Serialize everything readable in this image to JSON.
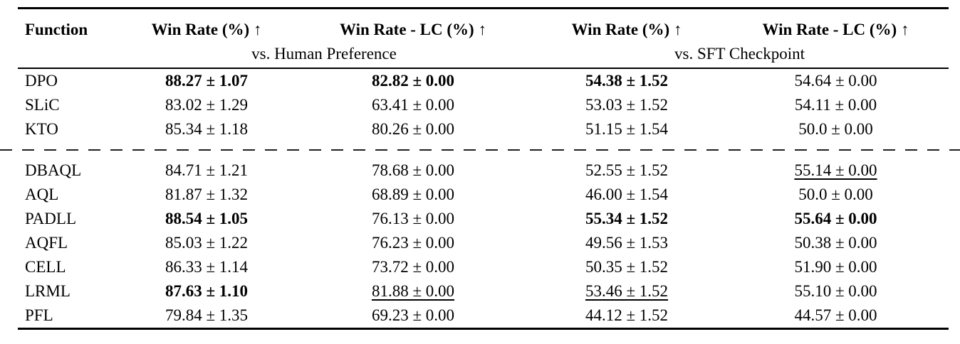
{
  "table": {
    "columns": [
      "Function",
      "Win Rate (%) ↑",
      "Win Rate - LC (%) ↑",
      "Win Rate (%) ↑",
      "Win Rate - LC (%) ↑"
    ],
    "subtitles": [
      "vs. Human Preference",
      "vs. SFT Checkpoint"
    ],
    "rows": [
      {
        "function": "DPO",
        "cells": [
          {
            "text": "88.27 ± 1.07",
            "bold": true
          },
          {
            "text": "82.82 ± 0.00",
            "bold": true
          },
          {
            "text": "54.38 ± 1.52",
            "bold": true
          },
          {
            "text": "54.64 ± 0.00"
          }
        ]
      },
      {
        "function": "SLiC",
        "cells": [
          {
            "text": "83.02 ± 1.29"
          },
          {
            "text": "63.41 ± 0.00"
          },
          {
            "text": "53.03 ± 1.52"
          },
          {
            "text": "54.11 ± 0.00"
          }
        ]
      },
      {
        "function": "KTO",
        "cells": [
          {
            "text": "85.34 ± 1.18"
          },
          {
            "text": "80.26 ± 0.00"
          },
          {
            "text": "51.15 ± 1.54"
          },
          {
            "text": "50.0 ± 0.00"
          }
        ],
        "group_end": true
      },
      {
        "function": "DBAQL",
        "cells": [
          {
            "text": "84.71 ± 1.21"
          },
          {
            "text": "78.68 ± 0.00"
          },
          {
            "text": "52.55 ± 1.52"
          },
          {
            "text": "55.14 ± 0.00",
            "underline": true
          }
        ],
        "group_start": true
      },
      {
        "function": "AQL",
        "cells": [
          {
            "text": "81.87 ± 1.32"
          },
          {
            "text": "68.89 ± 0.00"
          },
          {
            "text": "46.00 ± 1.54"
          },
          {
            "text": "50.0 ± 0.00"
          }
        ]
      },
      {
        "function": "PADLL",
        "cells": [
          {
            "text": "88.54 ± 1.05",
            "bold": true
          },
          {
            "text": "76.13 ± 0.00"
          },
          {
            "text": "55.34 ± 1.52",
            "bold": true
          },
          {
            "text": "55.64 ± 0.00",
            "bold": true
          }
        ]
      },
      {
        "function": "AQFL",
        "cells": [
          {
            "text": "85.03 ± 1.22"
          },
          {
            "text": "76.23 ± 0.00"
          },
          {
            "text": "49.56 ± 1.53"
          },
          {
            "text": "50.38 ± 0.00"
          }
        ]
      },
      {
        "function": "CELL",
        "cells": [
          {
            "text": "86.33 ± 1.14"
          },
          {
            "text": "73.72 ± 0.00"
          },
          {
            "text": "50.35 ± 1.52"
          },
          {
            "text": "51.90 ± 0.00"
          }
        ]
      },
      {
        "function": "LRML",
        "cells": [
          {
            "text": "87.63 ± 1.10",
            "bold": true
          },
          {
            "text": "81.88 ± 0.00",
            "underline": true
          },
          {
            "text": "53.46 ± 1.52",
            "underline": true
          },
          {
            "text": "55.10 ± 0.00"
          }
        ]
      },
      {
        "function": "PFL",
        "cells": [
          {
            "text": "79.84 ± 1.35"
          },
          {
            "text": "69.23 ± 0.00"
          },
          {
            "text": "44.12 ± 1.52"
          },
          {
            "text": "44.57 ± 0.00"
          }
        ]
      }
    ]
  },
  "chart_data": {
    "type": "table",
    "title": "",
    "columns": [
      "Function",
      "Win Rate (%) vs. Human Preference",
      "Win Rate - LC (%) vs. Human Preference",
      "Win Rate (%) vs. SFT Checkpoint",
      "Win Rate - LC (%) vs. SFT Checkpoint"
    ],
    "rows": [
      [
        "DPO",
        "88.27 ± 1.07",
        "82.82 ± 0.00",
        "54.38 ± 1.52",
        "54.64 ± 0.00"
      ],
      [
        "SLiC",
        "83.02 ± 1.29",
        "63.41 ± 0.00",
        "53.03 ± 1.52",
        "54.11 ± 0.00"
      ],
      [
        "KTO",
        "85.34 ± 1.18",
        "80.26 ± 0.00",
        "51.15 ± 1.54",
        "50.0 ± 0.00"
      ],
      [
        "DBAQL",
        "84.71 ± 1.21",
        "78.68 ± 0.00",
        "52.55 ± 1.52",
        "55.14 ± 0.00"
      ],
      [
        "AQL",
        "81.87 ± 1.32",
        "68.89 ± 0.00",
        "46.00 ± 1.54",
        "50.0 ± 0.00"
      ],
      [
        "PADLL",
        "88.54 ± 1.05",
        "76.13 ± 0.00",
        "55.34 ± 1.52",
        "55.64 ± 0.00"
      ],
      [
        "AQFL",
        "85.03 ± 1.22",
        "76.23 ± 0.00",
        "49.56 ± 1.53",
        "50.38 ± 0.00"
      ],
      [
        "CELL",
        "86.33 ± 1.14",
        "73.72 ± 0.00",
        "50.35 ± 1.52",
        "51.90 ± 0.00"
      ],
      [
        "LRML",
        "87.63 ± 1.10",
        "81.88 ± 0.00",
        "53.46 ± 1.52",
        "55.10 ± 0.00"
      ],
      [
        "PFL",
        "79.84 ± 1.35",
        "69.23 ± 0.00",
        "44.12 ± 1.52",
        "44.57 ± 0.00"
      ]
    ]
  },
  "colors": {
    "text": "#000000",
    "rule": "#000000",
    "background": "#ffffff"
  }
}
